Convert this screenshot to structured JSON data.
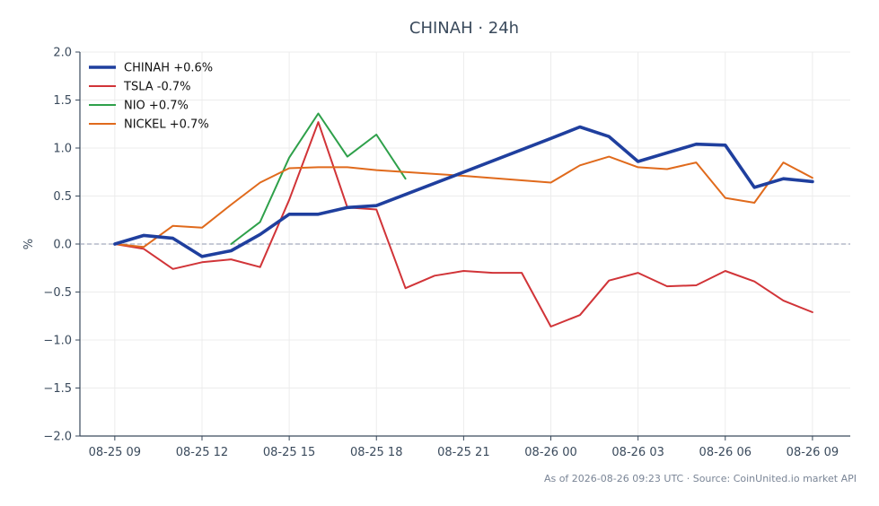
{
  "chart_data": {
    "type": "line",
    "title": "CHINAH · 24h",
    "ylabel": "%",
    "xlabel": "",
    "ylim": [
      -2.0,
      2.0
    ],
    "yticks": [
      "2.0",
      "1.5",
      "1.0",
      "0.5",
      "0.0",
      "−0.5",
      "−1.0",
      "−1.5",
      "−2.0"
    ],
    "xtick_labels": [
      "08-25 09",
      "08-25 12",
      "08-25 15",
      "08-25 18",
      "08-25 21",
      "08-26 00",
      "08-26 03",
      "08-26 06",
      "08-26 09"
    ],
    "grid": true,
    "legend_position": "top-left",
    "baseline": 0.0,
    "footnote": "As of 2026-08-26 09:23 UTC · Source: CoinUnited.io market API",
    "series": [
      {
        "name": "CHINAH +0.6%",
        "color": "#1f3f9e",
        "width": "thick",
        "points": [
          [
            0,
            0.0
          ],
          [
            1,
            0.09
          ],
          [
            2,
            0.06
          ],
          [
            3,
            -0.13
          ],
          [
            4,
            -0.07
          ],
          [
            5,
            0.1
          ],
          [
            6,
            0.31
          ],
          [
            7,
            0.31
          ],
          [
            8,
            0.38
          ],
          [
            9,
            0.4
          ],
          [
            12,
            0.75
          ],
          [
            15,
            1.1
          ],
          [
            16,
            1.22
          ],
          [
            17,
            1.12
          ],
          [
            18,
            0.86
          ],
          [
            20,
            1.04
          ],
          [
            21,
            1.03
          ],
          [
            22,
            0.59
          ],
          [
            23,
            0.68
          ],
          [
            24,
            0.65
          ]
        ]
      },
      {
        "name": "TSLA -0.7%",
        "color": "#d13438",
        "width": "normal",
        "points": [
          [
            0,
            0.0
          ],
          [
            1,
            -0.05
          ],
          [
            2,
            -0.26
          ],
          [
            3,
            -0.19
          ],
          [
            4,
            -0.16
          ],
          [
            5,
            -0.24
          ],
          [
            6,
            0.46
          ],
          [
            7,
            1.27
          ],
          [
            8,
            0.38
          ],
          [
            9,
            0.36
          ],
          [
            10,
            -0.46
          ],
          [
            11,
            -0.33
          ],
          [
            12,
            -0.28
          ],
          [
            13,
            -0.3
          ],
          [
            14,
            -0.3
          ],
          [
            15,
            -0.86
          ],
          [
            16,
            -0.74
          ],
          [
            17,
            -0.38
          ],
          [
            18,
            -0.3
          ],
          [
            19,
            -0.44
          ],
          [
            20,
            -0.43
          ],
          [
            21,
            -0.28
          ],
          [
            22,
            -0.39
          ],
          [
            23,
            -0.59
          ],
          [
            24,
            -0.71
          ]
        ]
      },
      {
        "name": "NIO +0.7%",
        "color": "#2ea04a",
        "width": "normal",
        "points": [
          [
            4,
            0.0
          ],
          [
            5,
            0.23
          ],
          [
            6,
            0.9
          ],
          [
            7,
            1.36
          ],
          [
            8,
            0.91
          ],
          [
            9,
            1.14
          ],
          [
            10,
            0.68
          ]
        ]
      },
      {
        "name": "NICKEL +0.7%",
        "color": "#e06a1c",
        "width": "normal",
        "points": [
          [
            0,
            0.0
          ],
          [
            1,
            -0.03
          ],
          [
            2,
            0.19
          ],
          [
            3,
            0.17
          ],
          [
            4,
            0.41
          ],
          [
            5,
            0.64
          ],
          [
            6,
            0.79
          ],
          [
            7,
            0.8
          ],
          [
            8,
            0.8
          ],
          [
            9,
            0.77
          ],
          [
            12,
            0.71
          ],
          [
            15,
            0.64
          ],
          [
            16,
            0.82
          ],
          [
            17,
            0.91
          ],
          [
            18,
            0.8
          ],
          [
            19,
            0.78
          ],
          [
            20,
            0.85
          ],
          [
            21,
            0.48
          ],
          [
            22,
            0.43
          ],
          [
            23,
            0.85
          ],
          [
            24,
            0.69
          ]
        ]
      }
    ]
  }
}
